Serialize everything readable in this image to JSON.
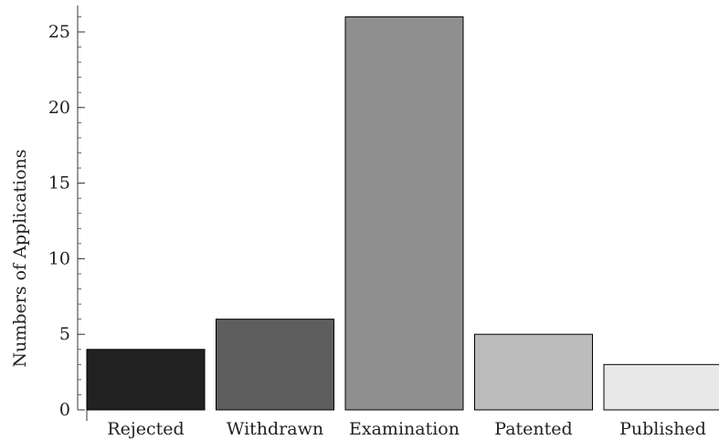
{
  "chart_data": {
    "type": "bar",
    "title": "",
    "xlabel": "",
    "ylabel": "Numbers of Applications",
    "categories": [
      "Rejected",
      "Withdrawn",
      "Examination",
      "Patented",
      "Published"
    ],
    "values": [
      4,
      6,
      26,
      5,
      3
    ],
    "colors": [
      "#222222",
      "#5e5e5e",
      "#8f8f8f",
      "#bcbcbc",
      "#e8e8e8"
    ],
    "ylim": [
      0,
      26.5
    ],
    "yticks": [
      0,
      5,
      10,
      15,
      20,
      25
    ],
    "grid": false,
    "legend": "none"
  }
}
